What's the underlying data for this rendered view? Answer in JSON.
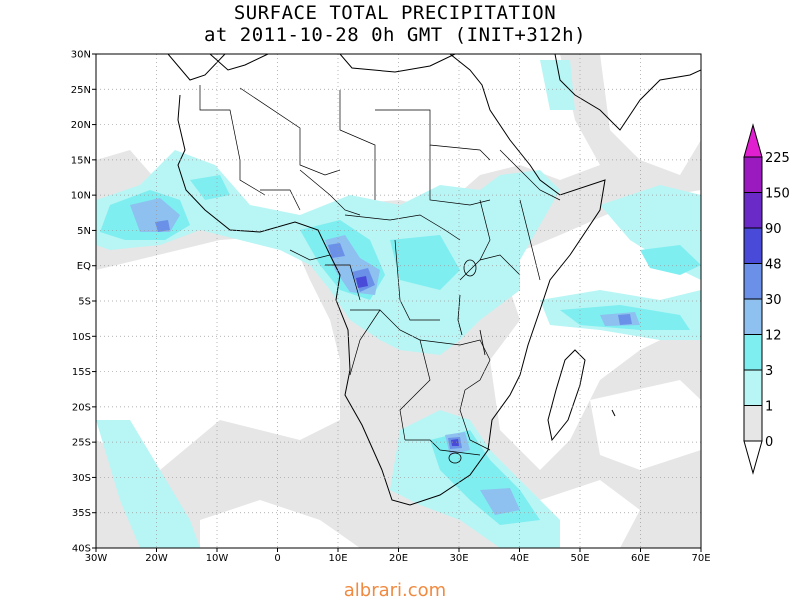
{
  "title": {
    "line1": "SURFACE TOTAL PRECIPITATION",
    "line2": "at 2011-10-28 0h GMT (INIT+312h)"
  },
  "map": {
    "lon_range": [
      -30,
      70
    ],
    "lat_range": [
      -40,
      30
    ],
    "lat_labels": [
      "30N",
      "25N",
      "20N",
      "15N",
      "10N",
      "5N",
      "EQ",
      "5S",
      "10S",
      "15S",
      "20S",
      "25S",
      "30S",
      "35S",
      "40S"
    ],
    "lon_labels": [
      "30W",
      "20W",
      "10W",
      "0",
      "10E",
      "20E",
      "30E",
      "40E",
      "50E",
      "60E",
      "70E"
    ],
    "colors": {
      "ocean_dry": "#e6e6e6",
      "land": "#ffffff",
      "coast": "#000000",
      "grid": "#9a9a9a"
    }
  },
  "colorbar": {
    "levels": [
      "0",
      "1",
      "3",
      "12",
      "30",
      "48",
      "90",
      "150",
      "225"
    ],
    "colors": [
      "#ffffff",
      "#e6e6e6",
      "#b8f5f5",
      "#7eeef0",
      "#8ec0f0",
      "#6a90e8",
      "#4a4ad8",
      "#6a2ac8",
      "#9a1ac0",
      "#e020d0"
    ]
  },
  "watermark": "albrari.com"
}
